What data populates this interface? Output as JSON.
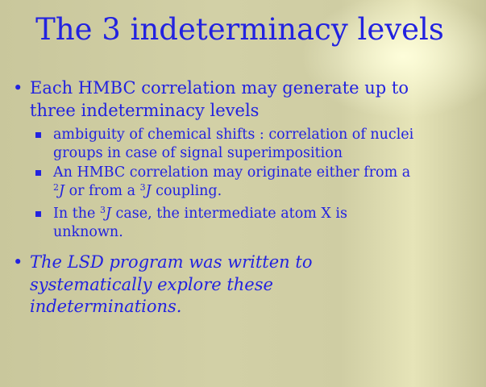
{
  "title": "The 3 indeterminacy levels",
  "bullets": [
    {
      "lines": [
        "Each HMBC correlation may generate up to",
        "three indeterminacy levels"
      ],
      "sub": [
        {
          "lines": [
            "ambiguity of chemical shifts : correlation of nuclei",
            "groups in case of signal superimposition"
          ]
        },
        {
          "line1": "An HMBC correlation may originate either from a",
          "line2_pre_sup": "2",
          "line2_j": "J",
          "line2_mid": " or from a ",
          "line2_sup2": "3",
          "line2_j2": "J",
          "line2_post": " coupling."
        },
        {
          "line1_pre": "In the ",
          "line1_sup": "3",
          "line1_j": "J",
          "line1_post": " case, the intermediate atom X is",
          "line2": "unknown."
        }
      ]
    },
    {
      "lines": [
        "The LSD program was written to",
        "systematically explore these",
        "indeterminations."
      ]
    }
  ]
}
